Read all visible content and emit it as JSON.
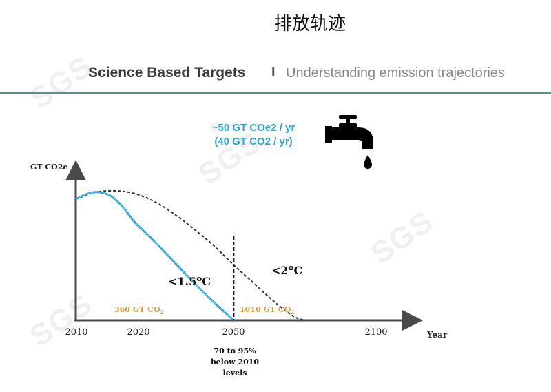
{
  "title": "排放轨迹",
  "header": {
    "main": "Science Based Targets",
    "separator": "I",
    "subtitle": "Understanding emission trajectories"
  },
  "emission_rate": {
    "line1": "~50 GT COe2 / yr",
    "line2": "(40 GT CO2 / yr)"
  },
  "icons": {
    "tap": "water-tap-icon"
  },
  "colors": {
    "accent_blue": "#2ba6d9",
    "budget_gold": "#d8a23c",
    "curve_dark": "#333333",
    "divider": "#5a8f95"
  },
  "watermark": "SGS",
  "chart_data": {
    "type": "line",
    "ylabel": "GT CO2e",
    "xlabel": "Year",
    "x_ticks": [
      "2010",
      "2020",
      "2050",
      "2100"
    ],
    "series": [
      {
        "name": "<1.5ºC",
        "color": "#2ba6d9",
        "points": [
          [
            2010,
            88
          ],
          [
            2013,
            92
          ],
          [
            2016,
            93
          ],
          [
            2019,
            90
          ],
          [
            2022,
            82
          ],
          [
            2025,
            71
          ],
          [
            2030,
            57
          ],
          [
            2035,
            42
          ],
          [
            2040,
            27
          ],
          [
            2045,
            13
          ],
          [
            2048,
            5
          ],
          [
            2050,
            0
          ]
        ]
      },
      {
        "name": "<2ºC",
        "color": "#333333",
        "points": [
          [
            2010,
            88
          ],
          [
            2015,
            93
          ],
          [
            2020,
            94
          ],
          [
            2025,
            92
          ],
          [
            2030,
            86
          ],
          [
            2035,
            77
          ],
          [
            2040,
            66
          ],
          [
            2045,
            54
          ],
          [
            2050,
            40
          ],
          [
            2055,
            27
          ],
          [
            2060,
            14
          ],
          [
            2065,
            3
          ],
          [
            2068,
            0
          ]
        ]
      }
    ],
    "markers": [
      {
        "x": 2050,
        "label": "70 to 95%",
        "label2": "below 2010",
        "label3": "levels"
      }
    ],
    "annotations": [
      {
        "text": "360 GT CO",
        "sub": "2"
      },
      {
        "text": "1010 GT CO",
        "sub": "2"
      }
    ],
    "xlim": [
      2010,
      2068
    ],
    "ylim": [
      0,
      100
    ],
    "grid": false,
    "legend": "none"
  }
}
